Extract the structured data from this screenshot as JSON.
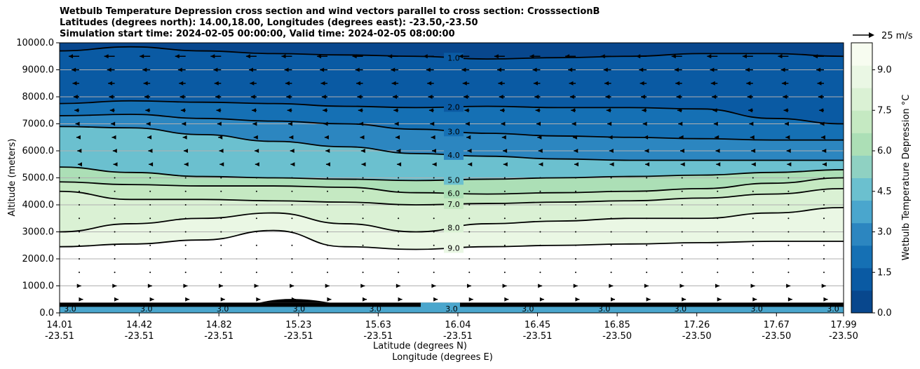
{
  "title_lines": [
    "Wetbulb Temperature Depression cross section and wind vectors parallel to cross section: CrosssectionB",
    "Latitudes (degrees north): 14.00,18.00, Longitudes (degrees east): -23.50,-23.50",
    "Simulation start time: 2024-02-05 00:00:00, Valid time: 2024-02-05 08:00:00"
  ],
  "chart_data": {
    "type": "heatmap",
    "ylabel": "Altitude (meters)",
    "xlabel_lat": "Latitude (degrees N)",
    "xlabel_lon": "Longitude (degrees E)",
    "ylim": [
      0,
      10000
    ],
    "y_ticks": [
      "0.0",
      "1000.0",
      "2000.0",
      "3000.0",
      "4000.0",
      "5000.0",
      "6000.0",
      "7000.0",
      "8000.0",
      "9000.0",
      "10000.0"
    ],
    "x_ticks_lat": [
      "14.01",
      "14.42",
      "14.82",
      "15.23",
      "15.63",
      "16.04",
      "16.45",
      "16.85",
      "17.26",
      "17.67",
      "17.99"
    ],
    "x_ticks_lon": [
      "-23.51",
      "-23.51",
      "-23.51",
      "-23.51",
      "-23.51",
      "-23.51",
      "-23.51",
      "-23.50",
      "-23.50",
      "-23.50",
      "-23.50"
    ],
    "grid": "horizontal",
    "colorbar": {
      "label": "Wetbulb Temperature Depression °C",
      "range": [
        0,
        10
      ],
      "ticks": [
        "0.0",
        "1.5",
        "3.0",
        "4.5",
        "6.0",
        "7.5",
        "9.0"
      ],
      "colormap": [
        "#08478d",
        "#0a5aa3",
        "#1570b4",
        "#2c86c0",
        "#4aa6cd",
        "#6bc0cf",
        "#8fd1c2",
        "#acdfb6",
        "#c5e9c2",
        "#daf1d4",
        "#eaf7e4",
        "#f7fcf0"
      ]
    },
    "contours": [
      {
        "label": "1.0",
        "profile": [
          9700,
          9850,
          9700,
          9600,
          9550,
          9500,
          9400,
          9450,
          9500,
          9600,
          9600,
          9500
        ]
      },
      {
        "label": "2.0",
        "profile": [
          7750,
          7850,
          7800,
          7750,
          7650,
          7600,
          7650,
          7600,
          7600,
          7550,
          7200,
          7000
        ]
      },
      {
        "label": "3.0",
        "profile": [
          7300,
          7350,
          7200,
          7100,
          7000,
          6800,
          6650,
          6550,
          6500,
          6450,
          6400,
          6400
        ]
      },
      {
        "label": "4.0",
        "profile": [
          6900,
          6850,
          6600,
          6350,
          6150,
          5900,
          5800,
          5700,
          5650,
          5650,
          5650,
          5650
        ]
      },
      {
        "label": "5.0",
        "profile": [
          5400,
          5200,
          5050,
          5000,
          4950,
          4900,
          4950,
          5000,
          5050,
          5100,
          5200,
          5300
        ]
      },
      {
        "label": "6.0",
        "profile": [
          4850,
          4750,
          4700,
          4700,
          4650,
          4450,
          4400,
          4450,
          4500,
          4600,
          4800,
          5000
        ]
      },
      {
        "label": "7.0",
        "profile": [
          4500,
          4200,
          4200,
          4150,
          4100,
          4000,
          4050,
          4100,
          4150,
          4250,
          4400,
          4600
        ]
      },
      {
        "label": "8.0",
        "profile": [
          3000,
          3300,
          3500,
          3700,
          3300,
          3000,
          3300,
          3400,
          3500,
          3500,
          3700,
          3900
        ]
      },
      {
        "label": "9.0",
        "profile": [
          2450,
          2550,
          2700,
          3050,
          2450,
          2350,
          2450,
          2500,
          2550,
          2600,
          2650,
          2650
        ]
      }
    ],
    "surface_contour_labels": [
      "3.0",
      "3.0",
      "3.0",
      "3.0",
      "3.0",
      "3.0",
      "3.0",
      "3.0",
      "3.0",
      "3.0",
      "3.0"
    ],
    "wind_vectors": {
      "reference_label": "25 m/s",
      "reference_speed": 25,
      "levels": [
        {
          "alt": 9500,
          "u": -11
        },
        {
          "alt": 9000,
          "u": -8
        },
        {
          "alt": 8500,
          "u": -7
        },
        {
          "alt": 8000,
          "u": -6
        },
        {
          "alt": 7500,
          "u": -5
        },
        {
          "alt": 7000,
          "u": -4
        },
        {
          "alt": 6500,
          "u": -3
        },
        {
          "alt": 6000,
          "u": -2
        },
        {
          "alt": 5500,
          "u": -1.5
        },
        {
          "alt": 5000,
          "u": -1
        },
        {
          "alt": 4500,
          "u": -0.8
        },
        {
          "alt": 4000,
          "u": -0.5
        },
        {
          "alt": 3500,
          "u": -0.5
        },
        {
          "alt": 3000,
          "u": -0.3
        },
        {
          "alt": 2500,
          "u": 0.2
        },
        {
          "alt": 2000,
          "u": 0.3
        },
        {
          "alt": 1500,
          "u": 0.5
        },
        {
          "alt": 1000,
          "u": 2
        },
        {
          "alt": 500,
          "u": 4
        }
      ]
    }
  }
}
